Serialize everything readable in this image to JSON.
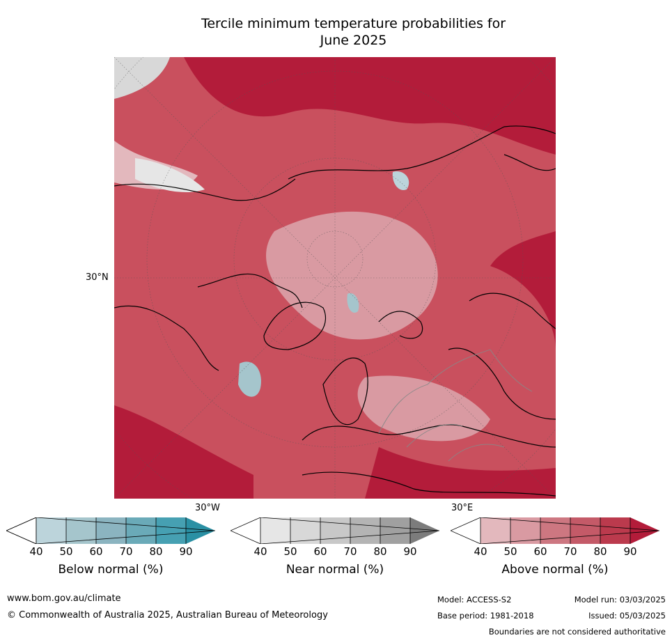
{
  "title_line1": "Tercile minimum temperature probabilities for",
  "title_line2": "June 2025",
  "map": {
    "labels": {
      "lat": "30°N",
      "lon_west": "30°W",
      "lon_east": "30°E"
    }
  },
  "colorbars": [
    {
      "label": "Below normal (%)",
      "ticks": [
        "40",
        "50",
        "60",
        "70",
        "80",
        "90"
      ],
      "colors": [
        "#ffffff",
        "#bcd4db",
        "#a5c5cc",
        "#8bb4c0",
        "#6aaab8",
        "#46a0b2",
        "#2a90a4"
      ]
    },
    {
      "label": "Near normal (%)",
      "ticks": [
        "40",
        "50",
        "60",
        "70",
        "80",
        "90"
      ],
      "colors": [
        "#ffffff",
        "#e6e6e6",
        "#d8d8d8",
        "#c8c8c8",
        "#b4b4b4",
        "#a0a0a0",
        "#7c7c7c"
      ]
    },
    {
      "label": "Above normal (%)",
      "ticks": [
        "40",
        "50",
        "60",
        "70",
        "80",
        "90"
      ],
      "colors": [
        "#ffffff",
        "#e3b8bd",
        "#d99aa2",
        "#cd7781",
        "#c45a68",
        "#bb3a4d",
        "#b31c3a"
      ]
    }
  ],
  "footer": {
    "website": "www.bom.gov.au/climate",
    "copyright": "© Commonwealth of Australia 2025, Australian Bureau of Meteorology",
    "model": "Model: ACCESS-S2",
    "model_run": "Model run: 03/03/2025",
    "base_period": "Base period: 1981-2018",
    "issued": "Issued: 05/03/2025",
    "disclaimer": "Boundaries are not considered authoritative"
  }
}
